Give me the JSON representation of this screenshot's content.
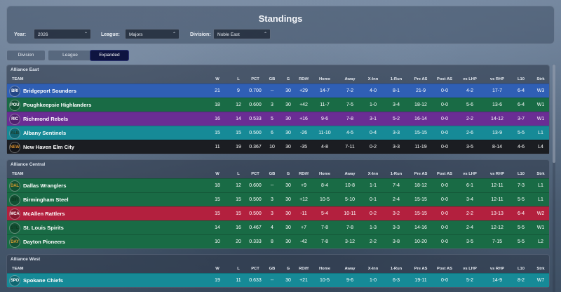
{
  "title": "Standings",
  "filters": {
    "year_label": "Year:",
    "year_value": "2026",
    "league_label": "League:",
    "league_value": "Majors",
    "division_label": "Division:",
    "division_value": "Noble East"
  },
  "tabs": [
    {
      "label": "Division",
      "active": false
    },
    {
      "label": "League",
      "active": false
    },
    {
      "label": "Expanded",
      "active": true
    }
  ],
  "columns": [
    "TEAM",
    "W",
    "L",
    "PCT",
    "GB",
    "G",
    "RDiff",
    "Home",
    "Away",
    "X-Inn",
    "1-Run",
    "Pre AS",
    "Post AS",
    "vs LHP",
    "vs RHP",
    "L10",
    "Strk"
  ],
  "groups": [
    {
      "name": "Alliance East",
      "rows": [
        {
          "abbr": "BRI",
          "abbr_color": "#ffffff",
          "name": "Bridgeport Sounders",
          "color": "#2f5fb5",
          "stats": [
            "21",
            "9",
            "0.700",
            "--",
            "30",
            "+29",
            "14-7",
            "7-2",
            "4-0",
            "8-1",
            "21-9",
            "0-0",
            "4-2",
            "17-7",
            "6-4",
            "W3"
          ]
        },
        {
          "abbr": "POU",
          "abbr_color": "#ffffff",
          "name": "Poughkeepsie Highlanders",
          "color": "#196b45",
          "stats": [
            "18",
            "12",
            "0.600",
            "3",
            "30",
            "+42",
            "11-7",
            "7-5",
            "1-0",
            "3-4",
            "18-12",
            "0-0",
            "5-6",
            "13-6",
            "6-4",
            "W1"
          ]
        },
        {
          "abbr": "RIC",
          "abbr_color": "#ffffff",
          "name": "Richmond Rebels",
          "color": "#6a2d94",
          "stats": [
            "16",
            "14",
            "0.533",
            "5",
            "30",
            "+16",
            "9-6",
            "7-8",
            "3-1",
            "5-2",
            "16-14",
            "0-0",
            "2-2",
            "14-12",
            "3-7",
            "W1"
          ]
        },
        {
          "abbr": "ALB",
          "abbr_color": "#1b3f2e",
          "name": "Albany Sentinels",
          "color": "#168a97",
          "stats": [
            "15",
            "15",
            "0.500",
            "6",
            "30",
            "-26",
            "11-10",
            "4-5",
            "0-4",
            "3-3",
            "15-15",
            "0-0",
            "2-6",
            "13-9",
            "5-5",
            "L1"
          ]
        },
        {
          "abbr": "NEW",
          "abbr_color": "#d08a2a",
          "name": "New Haven Elm City",
          "color": "#1b1d22",
          "stats": [
            "11",
            "19",
            "0.367",
            "10",
            "30",
            "-35",
            "4-8",
            "7-11",
            "0-2",
            "3-3",
            "11-19",
            "0-0",
            "3-5",
            "8-14",
            "4-6",
            "L4"
          ]
        }
      ]
    },
    {
      "name": "Alliance Central",
      "rows": [
        {
          "abbr": "DAL",
          "abbr_color": "#e0a030",
          "name": "Dallas Wranglers",
          "color": "#196b45",
          "stats": [
            "18",
            "12",
            "0.600",
            "--",
            "30",
            "+9",
            "8-4",
            "10-8",
            "1-1",
            "7-4",
            "18-12",
            "0-0",
            "6-1",
            "12-11",
            "7-3",
            "L1"
          ]
        },
        {
          "abbr": "BIR",
          "abbr_color": "#0f3a22",
          "name": "Birmingham Steel",
          "color": "#196b45",
          "stats": [
            "15",
            "15",
            "0.500",
            "3",
            "30",
            "+12",
            "10-5",
            "5-10",
            "0-1",
            "2-4",
            "15-15",
            "0-0",
            "3-4",
            "12-11",
            "5-5",
            "L1"
          ]
        },
        {
          "abbr": "MCA",
          "abbr_color": "#ffffff",
          "name": "McAllen Rattlers",
          "color": "#b3203e",
          "stats": [
            "15",
            "15",
            "0.500",
            "3",
            "30",
            "-11",
            "5-4",
            "10-11",
            "0-2",
            "3-2",
            "15-15",
            "0-0",
            "2-2",
            "13-13",
            "6-4",
            "W2"
          ]
        },
        {
          "abbr": "STL",
          "abbr_color": "#0f3a22",
          "name": "St. Louis Spirits",
          "color": "#196b45",
          "stats": [
            "14",
            "16",
            "0.467",
            "4",
            "30",
            "+7",
            "7-8",
            "7-8",
            "1-3",
            "3-3",
            "14-16",
            "0-0",
            "2-4",
            "12-12",
            "5-5",
            "W1"
          ]
        },
        {
          "abbr": "DAY",
          "abbr_color": "#e0a030",
          "name": "Dayton Pioneers",
          "color": "#196b45",
          "stats": [
            "10",
            "20",
            "0.333",
            "8",
            "30",
            "-42",
            "7-8",
            "3-12",
            "2-2",
            "3-8",
            "10-20",
            "0-0",
            "3-5",
            "7-15",
            "5-5",
            "L2"
          ]
        }
      ]
    },
    {
      "name": "Alliance West",
      "rows": [
        {
          "abbr": "SPO",
          "abbr_color": "#ffffff",
          "name": "Spokane Chiefs",
          "color": "#168a97",
          "stats": [
            "19",
            "11",
            "0.633",
            "--",
            "30",
            "+21",
            "10-5",
            "9-6",
            "1-0",
            "6-3",
            "19-11",
            "0-0",
            "5-2",
            "14-9",
            "8-2",
            "W7"
          ]
        }
      ]
    }
  ]
}
